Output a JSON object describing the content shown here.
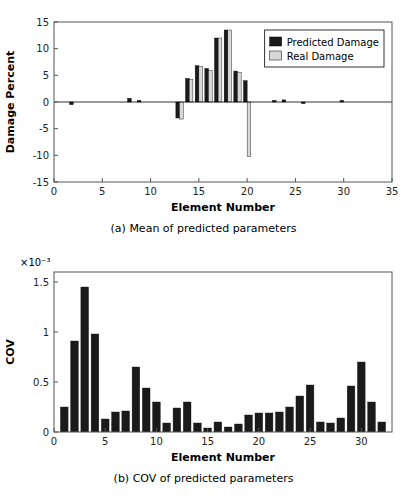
{
  "chart_data": [
    {
      "type": "bar",
      "title": "(a) Mean of predicted parameters",
      "x_label": "Element Number",
      "y_label": "Damage Percent",
      "x": [
        1,
        2,
        3,
        4,
        5,
        6,
        7,
        8,
        9,
        10,
        11,
        12,
        13,
        14,
        15,
        16,
        17,
        18,
        19,
        20,
        21,
        22,
        23,
        24,
        25,
        26,
        27,
        28,
        29,
        30,
        31,
        32,
        33,
        34
      ],
      "series": [
        {
          "name": "Predicted Damage",
          "color": "#1a1a1a",
          "values": [
            0,
            -0.5,
            0,
            0,
            0,
            0,
            0,
            0.7,
            0.3,
            0,
            0,
            0,
            -3.0,
            4.4,
            6.8,
            6.3,
            12.0,
            13.5,
            5.8,
            4.0,
            0,
            0,
            0.3,
            0.4,
            0,
            -0.3,
            0,
            0,
            0,
            0.3,
            0,
            0,
            0,
            0
          ]
        },
        {
          "name": "Real Damage",
          "color": "#d8d8d8",
          "values": [
            0,
            0,
            0,
            0,
            0,
            0,
            0,
            0,
            0,
            0,
            0,
            0,
            -3.2,
            4.2,
            6.7,
            5.9,
            12.0,
            13.5,
            5.6,
            -10.2,
            0,
            0,
            0,
            0,
            0,
            0,
            0,
            0,
            0,
            0,
            0,
            0,
            0,
            0
          ]
        }
      ],
      "xlim": [
        0,
        35
      ],
      "xticks": [
        0,
        5,
        10,
        15,
        20,
        25,
        30,
        35
      ],
      "ylim": [
        -15,
        15
      ],
      "yticks": [
        -15,
        -10,
        -5,
        0,
        5,
        10,
        15
      ],
      "legend": "upper right",
      "grid": false
    },
    {
      "type": "bar",
      "title": "(b) COV of predicted parameters",
      "x_label": "Element Number",
      "y_label": "COV",
      "annotations": [
        "×10⁻³"
      ],
      "x": [
        1,
        2,
        3,
        4,
        5,
        6,
        7,
        8,
        9,
        10,
        11,
        12,
        13,
        14,
        15,
        16,
        17,
        18,
        19,
        20,
        21,
        22,
        23,
        24,
        25,
        26,
        27,
        28,
        29,
        30,
        31,
        32
      ],
      "series": [
        {
          "color": "#1a1a1a",
          "values": [
            0.25,
            0.91,
            1.45,
            0.98,
            0.13,
            0.2,
            0.21,
            0.65,
            0.44,
            0.3,
            0.09,
            0.24,
            0.3,
            0.09,
            0.04,
            0.1,
            0.05,
            0.08,
            0.17,
            0.19,
            0.19,
            0.2,
            0.25,
            0.36,
            0.47,
            0.1,
            0.09,
            0.14,
            0.46,
            0.7,
            0.3,
            0.1
          ]
        }
      ],
      "xlim": [
        0,
        33
      ],
      "xticks": [
        0,
        5,
        10,
        15,
        20,
        25,
        30
      ],
      "ylim": [
        0,
        1.6
      ],
      "yticks": [
        0,
        0.5,
        1,
        1.5
      ],
      "grid": false
    }
  ]
}
